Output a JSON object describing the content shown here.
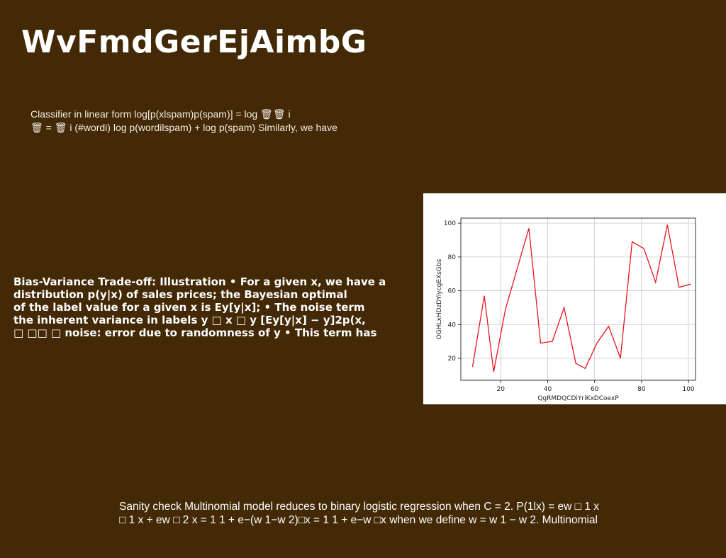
{
  "slide": {
    "title": "WvFmdGerEjAimbG",
    "block1": [
      "Classifier in linear form log[p(xlspam)p(spam)] = log 🗑🗑 i",
      "🗑 = 🗑 i (#wordi) log p(wordilspam) + log p(spam) Similarly, we have"
    ],
    "block2": [
      "Bias-Variance Trade-off: Illustration • For a given x, we have a",
      "distribution p(y|x) of sales prices; the Bayesian optimal",
      "of the label value for a given x is Ey[y|x]; • The noise term",
      "the inherent variance in labels y □ x □ y [Ey[y|x] − y]2p(x,",
      "□ □□ □ noise: error due to randomness of y • This term has"
    ],
    "block3": [
      "Sanity check Multinomial model reduces to binary logistic regression when C = 2. P(1lx) = ew □ 1 x",
      "□ 1 x + ew □ 2 x = 1 1 + e−(w 1−w 2)□x = 1 1 + e−w □x when we define w = w 1 − w 2. Multinomial"
    ]
  },
  "chart_data": {
    "type": "line",
    "xlabel": "QgRMDQCDiYriKxDCoexP",
    "ylabel": "OGHLxHDzDYiycgEXsGbs",
    "xlim": [
      3,
      103
    ],
    "ylim": [
      7,
      103
    ],
    "xticks": [
      20,
      40,
      60,
      80,
      100
    ],
    "yticks": [
      20,
      40,
      60,
      80,
      100
    ],
    "grid": true,
    "series": [
      {
        "color": "#e8141c",
        "x": [
          8,
          13,
          17,
          22,
          27,
          32,
          37,
          42,
          47,
          52,
          56,
          61,
          66,
          71,
          76,
          81,
          86,
          91,
          96,
          101
        ],
        "y": [
          15,
          57,
          12,
          49,
          73,
          97,
          29,
          30,
          50,
          17,
          14,
          29,
          39,
          20,
          89,
          85,
          65,
          99,
          62,
          64
        ]
      }
    ]
  }
}
